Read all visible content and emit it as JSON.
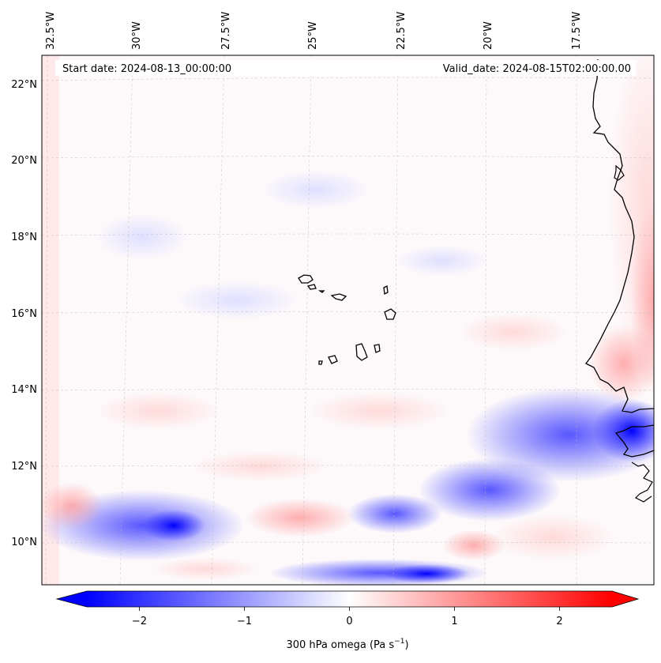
{
  "header": {
    "start_date": "Start date: 2024-08-13_00:00:00",
    "valid_date": "Valid_date: 2024-08-15T02:00:00.00"
  },
  "map": {
    "field": "300 hPa omega",
    "longitude_labels": [
      "32.5°W",
      "30°W",
      "27.5°W",
      "25°W",
      "22.5°W",
      "20°W",
      "17.5°W"
    ],
    "latitude_labels": [
      "22°N",
      "20°N",
      "18°N",
      "16°N",
      "14°N",
      "12°N",
      "10°N"
    ],
    "gridlines": true
  },
  "colorbar": {
    "label_main": "300 hPa omega (Pa s",
    "label_sup": "−1",
    "label_end": ")",
    "tick_labels": [
      "−2",
      "−1",
      "0",
      "1",
      "2"
    ],
    "tick_values": [
      -2,
      -1,
      0,
      1,
      2
    ],
    "range": [
      -2.5,
      2.5
    ],
    "extend": "both",
    "colormap": "bwr",
    "low_color": "#0000ff",
    "mid_color": "#ffffff",
    "high_color": "#ff0000"
  }
}
